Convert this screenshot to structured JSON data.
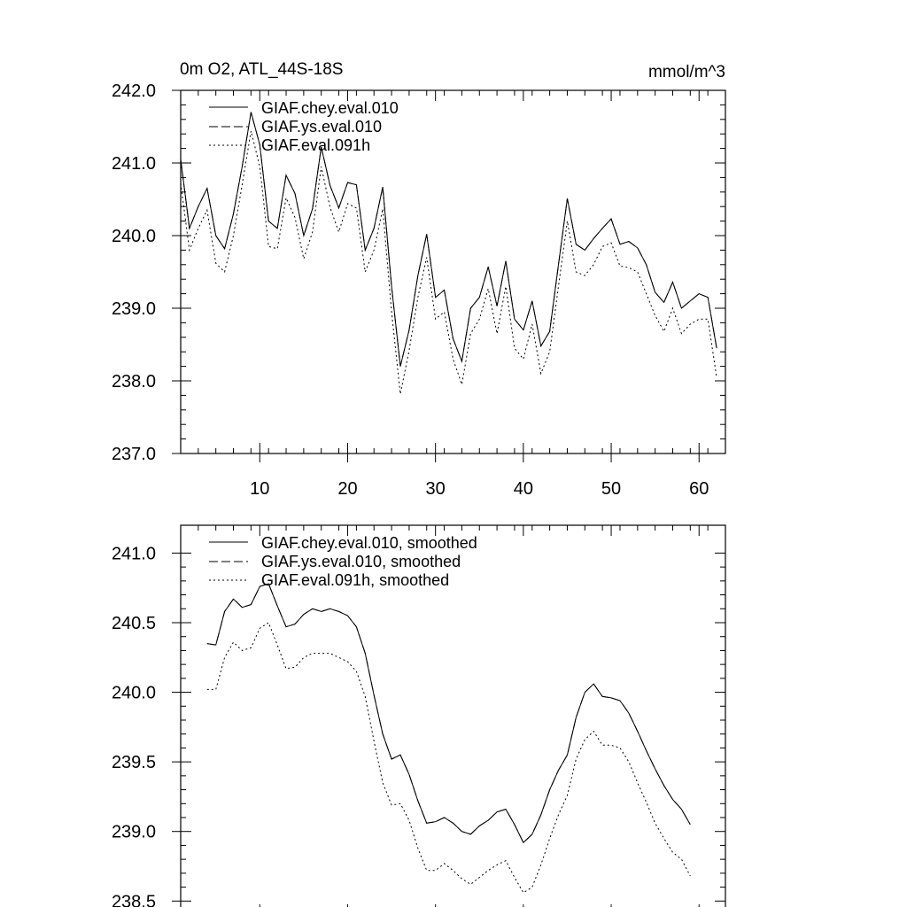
{
  "chart_data": [
    {
      "type": "line",
      "title_left": "0m O2, ATL_44S-18S",
      "title_right": "mmol/m^3",
      "xlabel": "",
      "ylabel": "",
      "xlim": [
        1,
        63
      ],
      "ylim": [
        237,
        242
      ],
      "xticks": [
        10,
        20,
        30,
        40,
        50,
        60
      ],
      "xtick_labels": [
        "10",
        "20",
        "30",
        "40",
        "50",
        "60"
      ],
      "yticks": [
        237,
        238,
        239,
        240,
        241,
        242
      ],
      "ytick_labels": [
        "237.0",
        "238.0",
        "239.0",
        "240.0",
        "241.0",
        "242.0"
      ],
      "legend_position": "top-left",
      "x": [
        1,
        2,
        3,
        4,
        5,
        6,
        7,
        8,
        9,
        10,
        11,
        12,
        13,
        14,
        15,
        16,
        17,
        18,
        19,
        20,
        21,
        22,
        23,
        24,
        25,
        26,
        27,
        28,
        29,
        30,
        31,
        32,
        33,
        34,
        35,
        36,
        37,
        38,
        39,
        40,
        41,
        42,
        43,
        44,
        45,
        46,
        47,
        48,
        49,
        50,
        51,
        52,
        53,
        54,
        55,
        56,
        57,
        58,
        59,
        60,
        61,
        62,
        63
      ],
      "series": [
        {
          "name": "GIAF.chey.eval.010",
          "dash": "solid",
          "values": [
            241.05,
            240.1,
            240.4,
            240.65,
            240.0,
            239.82,
            240.3,
            240.95,
            241.7,
            241.25,
            240.2,
            240.1,
            240.83,
            240.58,
            240.0,
            240.37,
            241.22,
            240.69,
            240.38,
            240.73,
            240.7,
            239.8,
            240.1,
            240.67,
            239.3,
            238.2,
            238.7,
            239.45,
            240.02,
            239.15,
            239.25,
            238.58,
            238.27,
            239.0,
            239.15,
            239.57,
            239.03,
            239.65,
            238.85,
            238.7,
            239.1,
            238.48,
            238.68,
            239.6,
            240.51,
            239.88,
            239.8,
            239.96,
            240.1,
            240.23,
            239.88,
            239.92,
            239.83,
            239.6,
            239.22,
            239.08,
            239.36,
            239.0,
            239.1,
            239.2,
            239.15,
            238.45,
            null
          ]
        },
        {
          "name": "GIAF.ys.eval.010",
          "dash": "long-dash",
          "values": [
            241.05,
            240.1,
            240.4,
            240.65,
            240.0,
            239.82,
            240.3,
            240.95,
            241.7,
            241.25,
            240.2,
            240.1,
            240.83,
            240.58,
            240.0,
            240.37,
            241.22,
            240.69,
            240.38,
            240.73,
            240.7,
            239.8,
            240.1,
            240.67,
            239.3,
            238.2,
            238.7,
            239.45,
            240.02,
            239.15,
            239.25,
            238.58,
            238.27,
            239.0,
            239.15,
            239.57,
            239.03,
            239.65,
            238.85,
            238.7,
            239.1,
            238.48,
            238.68,
            239.6,
            240.51,
            239.88,
            239.8,
            239.96,
            240.1,
            240.23,
            239.88,
            239.92,
            239.83,
            239.6,
            239.22,
            239.08,
            239.36,
            239.0,
            239.1,
            239.2,
            239.15,
            238.45,
            null
          ]
        },
        {
          "name": "GIAF.eval.091h",
          "dash": "dotted",
          "values": [
            240.72,
            239.8,
            240.1,
            240.35,
            239.62,
            239.5,
            240.0,
            240.7,
            241.44,
            240.95,
            239.85,
            239.82,
            240.52,
            240.25,
            239.68,
            240.05,
            240.95,
            240.39,
            240.05,
            240.44,
            240.38,
            239.5,
            239.8,
            240.37,
            238.95,
            237.82,
            238.42,
            239.15,
            239.7,
            238.85,
            238.95,
            238.3,
            237.95,
            238.65,
            238.85,
            239.27,
            238.65,
            239.3,
            238.45,
            238.3,
            238.78,
            238.1,
            238.4,
            239.3,
            240.2,
            239.5,
            239.45,
            239.6,
            239.85,
            239.9,
            239.58,
            239.56,
            239.5,
            239.2,
            238.9,
            238.68,
            239.0,
            238.65,
            238.78,
            238.85,
            238.85,
            238.05,
            null
          ]
        }
      ]
    },
    {
      "type": "line",
      "title_left": "",
      "title_right": "",
      "xlabel": "",
      "ylabel": "",
      "xlim": [
        1,
        63
      ],
      "ylim": [
        238.4,
        241.2
      ],
      "xticks": [
        10,
        20,
        30,
        40,
        50,
        60
      ],
      "xtick_labels": [],
      "yticks": [
        238.5,
        239.0,
        239.5,
        240.0,
        240.5,
        241.0
      ],
      "ytick_labels": [
        "238.5",
        "239.0",
        "239.5",
        "240.0",
        "240.5",
        "241.0"
      ],
      "legend_position": "top-left",
      "x": [
        1,
        2,
        3,
        4,
        5,
        6,
        7,
        8,
        9,
        10,
        11,
        12,
        13,
        14,
        15,
        16,
        17,
        18,
        19,
        20,
        21,
        22,
        23,
        24,
        25,
        26,
        27,
        28,
        29,
        30,
        31,
        32,
        33,
        34,
        35,
        36,
        37,
        38,
        39,
        40,
        41,
        42,
        43,
        44,
        45,
        46,
        47,
        48,
        49,
        50,
        51,
        52,
        53,
        54,
        55,
        56,
        57,
        58,
        59,
        60,
        61,
        62,
        63
      ],
      "series": [
        {
          "name": "GIAF.chey.eval.010, smoothed",
          "dash": "solid",
          "values": [
            null,
            null,
            null,
            240.35,
            240.34,
            240.58,
            240.67,
            240.61,
            240.63,
            240.76,
            240.78,
            240.62,
            240.47,
            240.49,
            240.56,
            240.6,
            240.58,
            240.6,
            240.58,
            240.55,
            240.47,
            240.28,
            239.98,
            239.7,
            239.52,
            239.55,
            239.41,
            239.22,
            239.06,
            239.07,
            239.1,
            239.06,
            239.0,
            238.98,
            239.04,
            239.08,
            239.14,
            239.16,
            239.05,
            238.92,
            238.98,
            239.12,
            239.3,
            239.44,
            239.55,
            239.82,
            240.0,
            240.06,
            239.97,
            239.96,
            239.94,
            239.85,
            239.72,
            239.58,
            239.45,
            239.33,
            239.23,
            239.16,
            239.05,
            null,
            null,
            null,
            null
          ]
        },
        {
          "name": "GIAF.ys.eval.010, smoothed",
          "dash": "long-dash",
          "values": [
            null,
            null,
            null,
            240.35,
            240.34,
            240.58,
            240.67,
            240.61,
            240.63,
            240.76,
            240.78,
            240.62,
            240.47,
            240.49,
            240.56,
            240.6,
            240.58,
            240.6,
            240.58,
            240.55,
            240.47,
            240.28,
            239.98,
            239.7,
            239.52,
            239.55,
            239.41,
            239.22,
            239.06,
            239.07,
            239.1,
            239.06,
            239.0,
            238.98,
            239.04,
            239.08,
            239.14,
            239.16,
            239.05,
            238.92,
            238.98,
            239.12,
            239.3,
            239.44,
            239.55,
            239.82,
            240.0,
            240.06,
            239.97,
            239.96,
            239.94,
            239.85,
            239.72,
            239.58,
            239.45,
            239.33,
            239.23,
            239.16,
            239.05,
            null,
            null,
            null,
            null
          ]
        },
        {
          "name": "GIAF.eval.091h, smoothed",
          "dash": "dotted",
          "values": [
            null,
            null,
            null,
            240.02,
            240.02,
            240.25,
            240.36,
            240.3,
            240.32,
            240.46,
            240.5,
            240.34,
            240.17,
            240.18,
            240.25,
            240.28,
            240.28,
            240.28,
            240.25,
            240.22,
            240.15,
            239.97,
            239.65,
            239.35,
            239.19,
            239.2,
            239.08,
            238.88,
            238.72,
            238.72,
            238.77,
            238.72,
            238.66,
            238.62,
            238.67,
            238.72,
            238.76,
            238.79,
            238.67,
            238.56,
            238.6,
            238.76,
            238.95,
            239.12,
            239.26,
            239.52,
            239.66,
            239.72,
            239.62,
            239.62,
            239.6,
            239.5,
            239.35,
            239.21,
            239.06,
            238.95,
            238.85,
            238.8,
            238.68,
            null,
            null,
            null,
            null
          ]
        }
      ]
    }
  ]
}
